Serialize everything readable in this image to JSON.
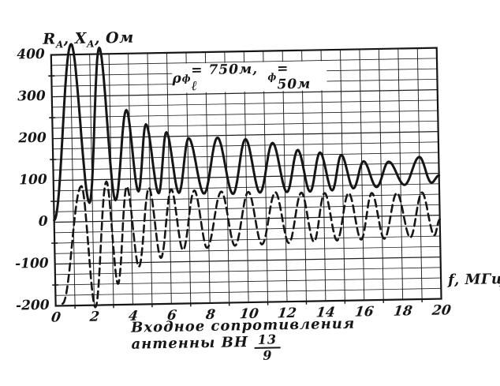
{
  "figure": {
    "y_axis_title": {
      "t1": "R",
      "s1": "A",
      "t2": ", X",
      "s2": "A",
      "t3": ", Ом"
    },
    "x_axis_title": "f, МГц",
    "annotation": {
      "t1": "ρ",
      "s1": "ф",
      "t2": " = 750м, ℓ",
      "s2": "ф",
      "t3": " = 50м"
    },
    "caption": {
      "line1": "Входное сопротивления",
      "line2": "антенны ВН",
      "frac_num": "13",
      "frac_den": "9"
    }
  },
  "chart_data": {
    "type": "line",
    "title": "",
    "xlabel": "f, МГц",
    "ylabel": "R_A, X_A, Ом",
    "xlim": [
      0,
      20
    ],
    "ylim": [
      -200,
      400
    ],
    "x_ticks": [
      0,
      2,
      4,
      6,
      8,
      10,
      12,
      14,
      16,
      18,
      20
    ],
    "y_ticks": [
      400,
      300,
      200,
      100,
      0,
      -100,
      -200
    ],
    "grid": {
      "on": true,
      "x_minor_step_mhz": 1,
      "y_minor_step_ohm": 25
    },
    "annotation_text": "ρф = 750м, ℓф = 50м",
    "colors": {
      "ink": "#161616",
      "paper": "#ffffff"
    },
    "legend": "none (solid curve = R_A, dashed curve = X_A)",
    "series": [
      {
        "name": "R_A",
        "style": "solid",
        "points_are": "extrema (f МГц, Ом); smooth oscillation between them",
        "points": [
          [
            0,
            5
          ],
          [
            1.05,
            425
          ],
          [
            1.85,
            45
          ],
          [
            2.5,
            415
          ],
          [
            3.2,
            50
          ],
          [
            3.85,
            265
          ],
          [
            4.4,
            70
          ],
          [
            4.85,
            230
          ],
          [
            5.45,
            65
          ],
          [
            5.9,
            210
          ],
          [
            6.5,
            65
          ],
          [
            7.05,
            195
          ],
          [
            7.8,
            62
          ],
          [
            8.55,
            195
          ],
          [
            9.3,
            60
          ],
          [
            10.0,
            190
          ],
          [
            10.7,
            62
          ],
          [
            11.4,
            180
          ],
          [
            12.1,
            62
          ],
          [
            12.7,
            162
          ],
          [
            13.3,
            62
          ],
          [
            13.85,
            155
          ],
          [
            14.45,
            64
          ],
          [
            14.95,
            148
          ],
          [
            15.55,
            68
          ],
          [
            16.1,
            132
          ],
          [
            16.75,
            70
          ],
          [
            17.4,
            130
          ],
          [
            18.2,
            74
          ],
          [
            19.0,
            140
          ],
          [
            19.6,
            78
          ],
          [
            20,
            95
          ]
        ]
      },
      {
        "name": "X_A",
        "style": "dashed",
        "points_are": "extrema (f МГц, Ом); smooth oscillation between them",
        "points": [
          [
            0.35,
            -195
          ],
          [
            1.45,
            85
          ],
          [
            2.05,
            -205
          ],
          [
            2.75,
            95
          ],
          [
            3.25,
            -150
          ],
          [
            3.8,
            82
          ],
          [
            4.35,
            -110
          ],
          [
            4.95,
            78
          ],
          [
            5.5,
            -90
          ],
          [
            6.1,
            74
          ],
          [
            6.65,
            -72
          ],
          [
            7.3,
            70
          ],
          [
            7.9,
            -68
          ],
          [
            8.7,
            66
          ],
          [
            9.35,
            -64
          ],
          [
            10.1,
            64
          ],
          [
            10.75,
            -62
          ],
          [
            11.5,
            62
          ],
          [
            12.15,
            -60
          ],
          [
            12.85,
            60
          ],
          [
            13.45,
            -58
          ],
          [
            14.05,
            58
          ],
          [
            14.65,
            -56
          ],
          [
            15.3,
            57
          ],
          [
            15.9,
            -55
          ],
          [
            16.5,
            56
          ],
          [
            17.1,
            -54
          ],
          [
            17.8,
            55
          ],
          [
            18.45,
            -52
          ],
          [
            19.1,
            55
          ],
          [
            19.7,
            -48
          ],
          [
            20,
            -10
          ]
        ]
      }
    ]
  }
}
